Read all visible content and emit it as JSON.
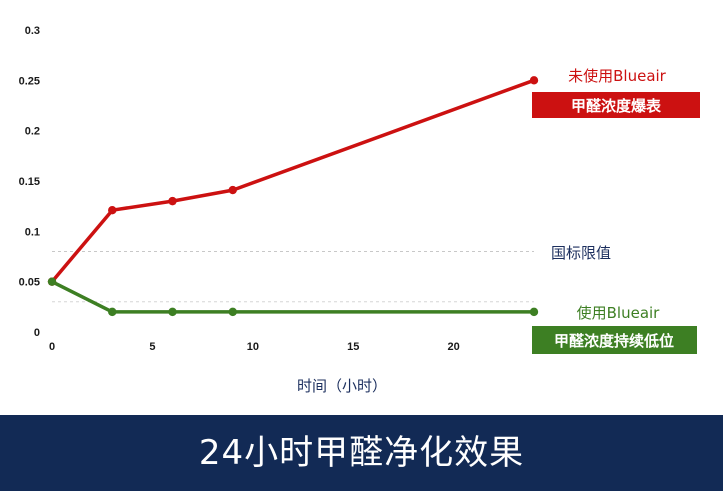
{
  "chart_data": {
    "type": "line",
    "x_ticks": [
      0,
      5,
      10,
      15,
      20
    ],
    "y_ticks": [
      0,
      0.05,
      0.1,
      0.15,
      0.2,
      0.25,
      0.3
    ],
    "y_tick_labels": [
      "0",
      "0.05",
      "0.1",
      "0.15",
      "0.2",
      "0.25",
      "0.3"
    ],
    "xlim": [
      0,
      24
    ],
    "ylim": [
      0,
      0.3
    ],
    "xlabel": "时间（小时）",
    "threshold": {
      "label": "国标限值",
      "value": 0.08
    },
    "series": [
      {
        "name": "未使用Blueair",
        "tag": "甲醛浓度爆表",
        "color": "#cc1111",
        "x": [
          0,
          3,
          6,
          9,
          24
        ],
        "y": [
          0.05,
          0.121,
          0.13,
          0.141,
          0.25
        ]
      },
      {
        "name": "使用Blueair",
        "tag": "甲醛浓度持续低位",
        "color": "#3d7f23",
        "x": [
          0,
          3,
          6,
          9,
          24
        ],
        "y": [
          0.05,
          0.02,
          0.02,
          0.02,
          0.02
        ]
      }
    ]
  },
  "banner": {
    "title": "24小时甲醛净化效果",
    "color": "#122a55"
  }
}
